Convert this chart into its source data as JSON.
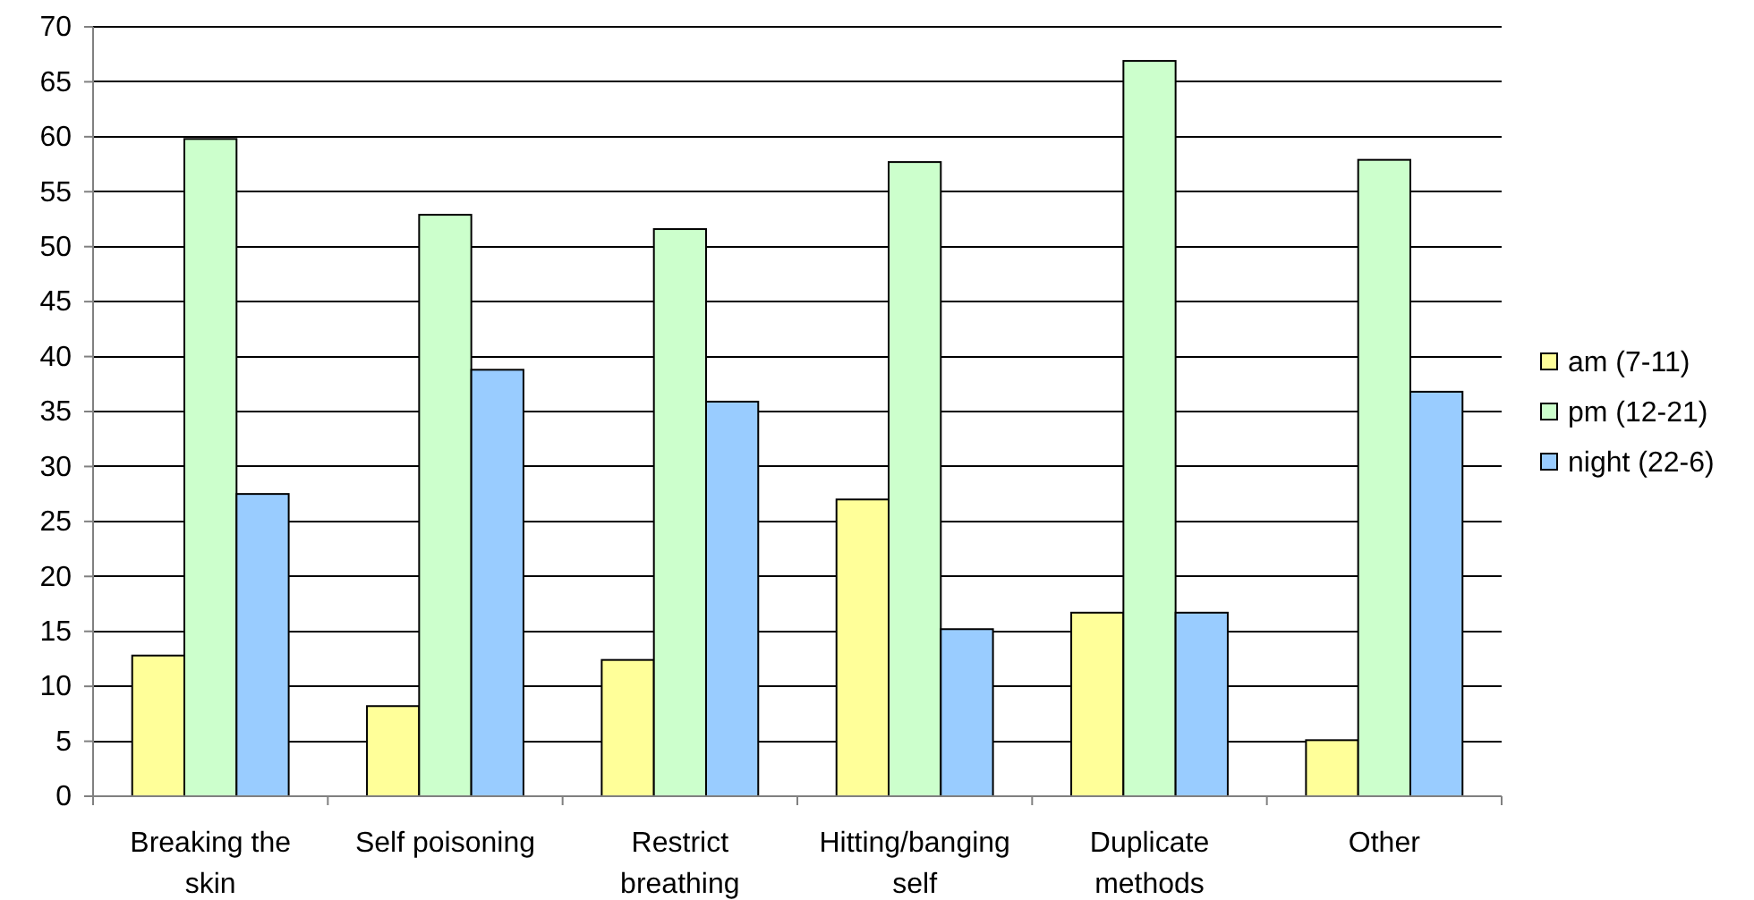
{
  "chart_data": {
    "type": "bar",
    "categories": [
      "Breaking the skin",
      "Self poisoning",
      "Restrict breathing",
      "Hitting/banging self",
      "Duplicate methods",
      "Other"
    ],
    "series": [
      {
        "name": "am (7-11)",
        "color": "#ffff99",
        "values": [
          12.8,
          8.2,
          12.4,
          27.0,
          16.7,
          5.1
        ]
      },
      {
        "name": "pm (12-21)",
        "color": "#ccffcc",
        "values": [
          59.8,
          52.9,
          51.6,
          57.7,
          66.9,
          57.9
        ]
      },
      {
        "name": "night (22-6)",
        "color": "#99ccff",
        "values": [
          27.5,
          38.8,
          35.9,
          15.2,
          16.7,
          36.8
        ]
      }
    ],
    "ylim": [
      0,
      70
    ],
    "yticks": [
      0,
      5,
      10,
      15,
      20,
      25,
      30,
      35,
      40,
      45,
      50,
      55,
      60,
      65,
      70
    ],
    "grid": "y",
    "legend": "right"
  }
}
